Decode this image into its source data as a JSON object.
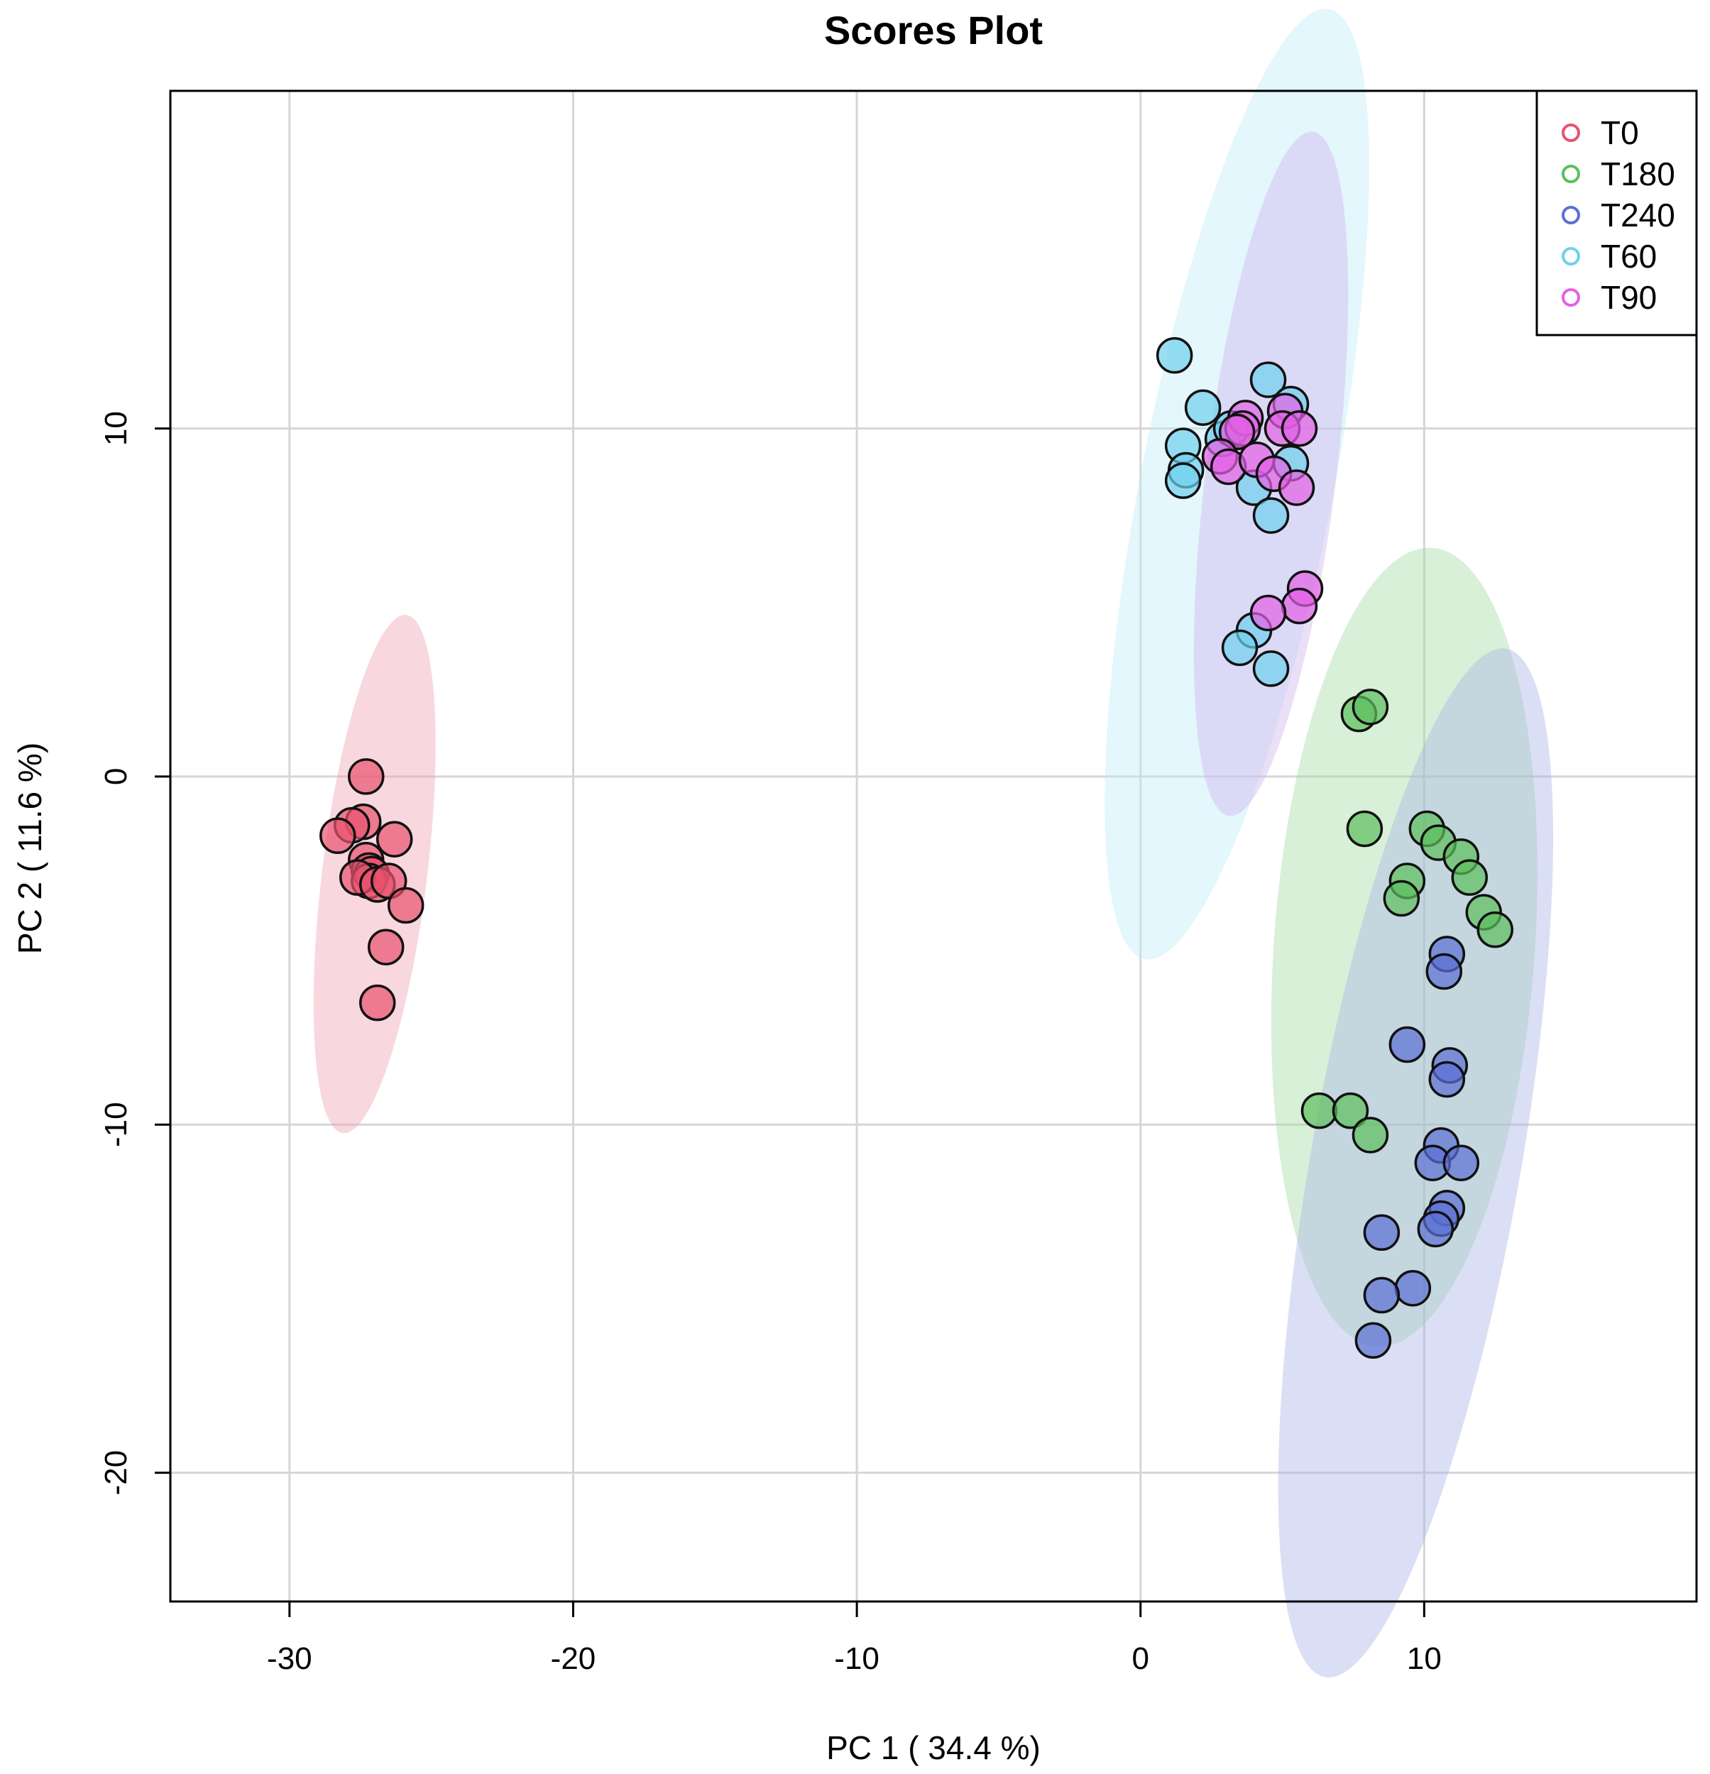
{
  "chart_data": {
    "type": "scatter",
    "title": "Scores Plot",
    "xlabel": "PC 1 ( 34.4 %)",
    "ylabel": "PC 2 ( 11.6 %)",
    "xlim": [
      -34.2,
      19.6
    ],
    "ylim": [
      -23.7,
      19.7
    ],
    "xticks": [
      -30,
      -20,
      -10,
      0,
      10
    ],
    "yticks": [
      -20,
      -10,
      0,
      10
    ],
    "grid": true,
    "legend": {
      "position": "top-right"
    },
    "series": [
      {
        "name": "T0",
        "color": "#e8536f",
        "ellipse_color": "#f0a0b0",
        "ellipse": {
          "cx": -27.0,
          "cy": -2.8,
          "rx": 1.85,
          "ry": 7.5,
          "angle": 97
        },
        "points": [
          [
            -27.3,
            0.0
          ],
          [
            -27.4,
            -1.3
          ],
          [
            -27.8,
            -1.4
          ],
          [
            -28.3,
            -1.7
          ],
          [
            -26.3,
            -1.8
          ],
          [
            -27.3,
            -2.4
          ],
          [
            -27.2,
            -2.7
          ],
          [
            -27.1,
            -2.8
          ],
          [
            -27.2,
            -3.0
          ],
          [
            -27.6,
            -2.9
          ],
          [
            -26.9,
            -3.1
          ],
          [
            -26.5,
            -3.0
          ],
          [
            -25.9,
            -3.7
          ],
          [
            -26.6,
            -4.9
          ],
          [
            -26.9,
            -6.5
          ]
        ]
      },
      {
        "name": "T180",
        "color": "#5cbf5c",
        "ellipse_color": "#a3d9a3",
        "ellipse": {
          "cx": 9.3,
          "cy": -4.9,
          "rx": 4.6,
          "ry": 11.5,
          "angle": 94
        },
        "points": [
          [
            7.7,
            1.8
          ],
          [
            8.1,
            2.0
          ],
          [
            7.9,
            -1.5
          ],
          [
            10.1,
            -1.5
          ],
          [
            10.5,
            -1.9
          ],
          [
            11.3,
            -2.3
          ],
          [
            11.6,
            -2.9
          ],
          [
            9.4,
            -3.0
          ],
          [
            9.2,
            -3.5
          ],
          [
            12.1,
            -3.9
          ],
          [
            12.5,
            -4.4
          ],
          [
            6.3,
            -9.6
          ],
          [
            7.4,
            -9.6
          ],
          [
            8.1,
            -10.3
          ]
        ]
      },
      {
        "name": "T240",
        "color": "#5b6fd4",
        "ellipse_color": "#a9b3e6",
        "ellipse": {
          "cx": 9.7,
          "cy": -11.1,
          "rx": 3.7,
          "ry": 15.0,
          "angle": 100
        },
        "points": [
          [
            10.8,
            -5.1
          ],
          [
            10.7,
            -5.6
          ],
          [
            9.4,
            -7.7
          ],
          [
            10.9,
            -8.3
          ],
          [
            10.8,
            -8.7
          ],
          [
            10.6,
            -10.6
          ],
          [
            10.3,
            -11.1
          ],
          [
            11.3,
            -11.1
          ],
          [
            10.8,
            -12.4
          ],
          [
            10.6,
            -12.7
          ],
          [
            10.4,
            -13.0
          ],
          [
            8.5,
            -13.1
          ],
          [
            9.6,
            -14.7
          ],
          [
            8.5,
            -14.9
          ],
          [
            8.2,
            -16.2
          ]
        ]
      },
      {
        "name": "T60",
        "color": "#6fd0ee",
        "ellipse_color": "#bdebf7",
        "ellipse": {
          "cx": 3.4,
          "cy": 8.4,
          "rx": 3.4,
          "ry": 13.9,
          "angle": 101
        },
        "points": [
          [
            1.2,
            12.1
          ],
          [
            4.5,
            11.4
          ],
          [
            2.2,
            10.6
          ],
          [
            5.3,
            10.7
          ],
          [
            2.9,
            9.7
          ],
          [
            3.2,
            10.0
          ],
          [
            1.5,
            9.5
          ],
          [
            1.6,
            8.8
          ],
          [
            1.5,
            8.5
          ],
          [
            5.3,
            9.0
          ],
          [
            4.0,
            8.3
          ],
          [
            4.6,
            7.5
          ],
          [
            4.0,
            4.2
          ],
          [
            3.5,
            3.7
          ],
          [
            4.6,
            3.1
          ]
        ]
      },
      {
        "name": "T90",
        "color": "#e460e6",
        "ellipse_color": "#d0b2ee",
        "ellipse": {
          "cx": 4.6,
          "cy": 8.7,
          "rx": 2.3,
          "ry": 9.9,
          "angle": 97
        },
        "points": [
          [
            3.7,
            10.3
          ],
          [
            3.6,
            10.0
          ],
          [
            3.4,
            9.9
          ],
          [
            5.1,
            10.5
          ],
          [
            5.0,
            10.0
          ],
          [
            5.6,
            10.0
          ],
          [
            2.8,
            9.2
          ],
          [
            3.1,
            8.9
          ],
          [
            4.1,
            9.1
          ],
          [
            4.7,
            8.7
          ],
          [
            5.5,
            8.3
          ],
          [
            5.8,
            5.4
          ],
          [
            5.6,
            4.9
          ],
          [
            4.5,
            4.7
          ]
        ]
      }
    ]
  }
}
